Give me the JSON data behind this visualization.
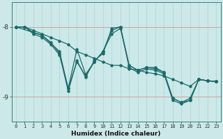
{
  "xlabel": "Humidex (Indice chaleur)",
  "bg_color": "#cce8e8",
  "line_color": "#1a6b6b",
  "grid_color_v": "#aad4d4",
  "grid_color_h": "#d4a0a0",
  "xlim": [
    -0.5,
    23.5
  ],
  "ylim": [
    -9.35,
    -7.65
  ],
  "yticks": [
    -9,
    -8
  ],
  "xticks": [
    0,
    1,
    2,
    3,
    4,
    5,
    6,
    7,
    8,
    9,
    10,
    11,
    12,
    13,
    14,
    15,
    16,
    17,
    18,
    19,
    20,
    21,
    22,
    23
  ],
  "lines": [
    {
      "x": [
        0,
        1,
        2,
        3,
        4,
        5,
        6,
        7,
        8,
        9,
        10,
        11,
        12,
        13,
        14,
        15,
        16,
        17,
        18,
        19,
        20,
        21,
        22,
        23
      ],
      "y": [
        -8.0,
        -8.0,
        -8.05,
        -8.1,
        -8.15,
        -8.2,
        -8.25,
        -8.35,
        -8.4,
        -8.45,
        -8.5,
        -8.55,
        -8.55,
        -8.6,
        -8.62,
        -8.65,
        -8.67,
        -8.7,
        -8.75,
        -8.8,
        -8.85,
        -8.75,
        -8.77,
        -8.78
      ]
    },
    {
      "x": [
        0,
        1,
        2,
        3,
        4,
        5,
        6,
        7,
        8,
        9,
        10,
        11,
        12,
        13,
        14,
        15,
        16,
        17,
        18,
        19,
        20,
        21,
        22,
        23
      ],
      "y": [
        -8.0,
        -8.0,
        -8.1,
        -8.15,
        -8.25,
        -8.4,
        -8.88,
        -8.5,
        -8.7,
        -8.5,
        -8.35,
        -8.05,
        -8.0,
        -8.55,
        -8.62,
        -8.58,
        -8.6,
        -8.65,
        -9.02,
        -9.08,
        -9.02,
        -8.75,
        -8.77,
        -8.78
      ]
    },
    {
      "x": [
        0,
        1,
        2,
        3,
        4,
        5,
        6,
        7,
        8,
        9,
        10,
        11,
        12,
        13,
        14,
        15,
        16,
        17,
        18,
        19,
        20,
        21,
        22,
        23
      ],
      "y": [
        -8.0,
        -8.0,
        -8.08,
        -8.12,
        -8.22,
        -8.38,
        -8.92,
        -8.48,
        -8.72,
        -8.48,
        -8.38,
        -8.02,
        -8.0,
        -8.58,
        -8.65,
        -8.6,
        -8.62,
        -8.67,
        -9.05,
        -9.1,
        -9.05,
        -8.75,
        -8.77,
        -8.78
      ]
    },
    {
      "x": [
        0,
        3,
        5,
        6,
        7,
        8,
        9,
        10,
        11,
        12,
        13,
        14,
        15,
        16,
        17,
        18,
        19,
        20,
        21,
        22,
        23
      ],
      "y": [
        -8.0,
        -8.12,
        -8.35,
        -8.88,
        -8.32,
        -8.68,
        -8.5,
        -8.35,
        -8.1,
        -8.02,
        -8.55,
        -8.62,
        -8.58,
        -8.58,
        -8.65,
        -9.02,
        -9.08,
        -9.05,
        -8.75,
        -8.77,
        -8.78
      ]
    }
  ]
}
